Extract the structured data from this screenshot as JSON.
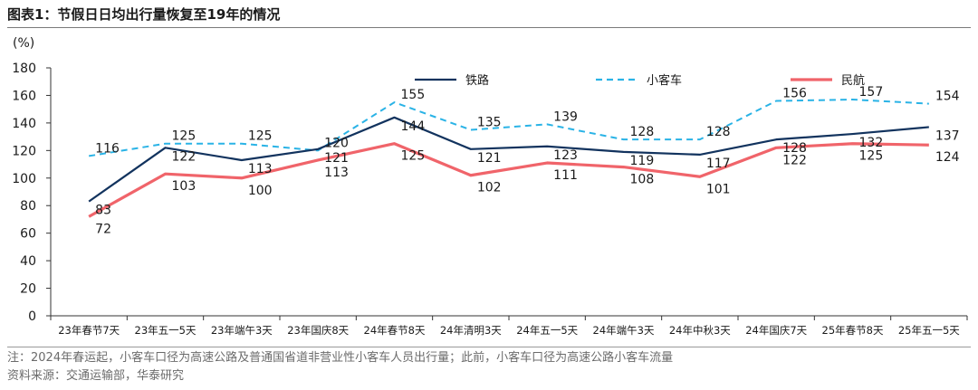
{
  "title": "图表1：节假日日均出行量恢复至19年的情况",
  "note": "注：2024年春运起，小客车口径为高速公路及普通国省道非营业性小客车人员出行量；此前，小客车口径为高速公路小客车流量",
  "source": "资料来源：交通运输部，华泰研究",
  "colors": {
    "rail": "#12335e",
    "car": "#2ab3e6",
    "air": "#f0646a"
  },
  "chart_data": {
    "type": "line",
    "ylabel": "(%)",
    "ylim": [
      0,
      180
    ],
    "yticks": [
      0,
      20,
      40,
      60,
      80,
      100,
      120,
      140,
      160,
      180
    ],
    "categories": [
      "23年春节7天",
      "23年五一5天",
      "23年端午3天",
      "23年国庆8天",
      "24年春节8天",
      "24年清明3天",
      "24年五一5天",
      "24年端午3天",
      "24年中秋3天",
      "24年国庆7天",
      "25年春节8天",
      "25年五一5天"
    ],
    "series": [
      {
        "name": "铁路",
        "key": "rail",
        "style": "solid",
        "values": [
          83,
          122,
          113,
          121,
          144,
          121,
          123,
          119,
          117,
          128,
          132,
          137
        ]
      },
      {
        "name": "小客车",
        "key": "car",
        "style": "dashed",
        "values": [
          116,
          125,
          125,
          120,
          155,
          135,
          139,
          128,
          128,
          156,
          157,
          154
        ]
      },
      {
        "name": "民航",
        "key": "air",
        "style": "solid",
        "values": [
          72,
          103,
          100,
          113,
          125,
          102,
          111,
          108,
          101,
          122,
          125,
          124
        ]
      }
    ],
    "legend_position": "top"
  }
}
